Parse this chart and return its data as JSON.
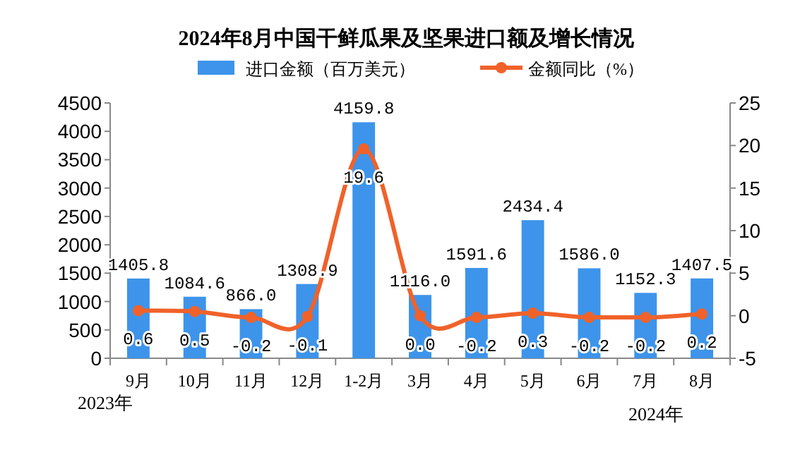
{
  "chart_data": {
    "type": "bar",
    "title": "2024年8月中国干鲜瓜果及坚果进口额及增长情况",
    "categories": [
      "9月",
      "10月",
      "11月",
      "12月",
      "1-2月",
      "3月",
      "4月",
      "5月",
      "6月",
      "7月",
      "8月"
    ],
    "series": [
      {
        "name": "进口金额（百万美元）",
        "color": "#3d94ea",
        "values": [
          1405.8,
          1084.6,
          866.0,
          1308.9,
          4159.8,
          1116.0,
          1591.6,
          2434.4,
          1586.0,
          1152.3,
          1407.5
        ],
        "value_labels": [
          "1405.8",
          "1084.6",
          "866.0",
          "1308.9",
          "4159.8",
          "1116.0",
          "1591.6",
          "2434.4",
          "1586.0",
          "1152.3",
          "1407.5"
        ]
      },
      {
        "name": "金额同比（%）",
        "type": "line",
        "axis": "y2",
        "color": "#f0622a",
        "marker": "circle",
        "values": [
          0.6,
          0.5,
          -0.2,
          -0.1,
          19.6,
          0.0,
          -0.2,
          0.3,
          -0.2,
          -0.2,
          0.2
        ],
        "value_labels": [
          "0.6",
          "0.5",
          "-0.2",
          "-0.1",
          "19.6",
          "0.0",
          "-0.2",
          "0.3",
          "-0.2",
          "-0.2",
          "0.2"
        ]
      }
    ],
    "ylim": [
      0,
      4500
    ],
    "yticks": [
      0,
      500,
      1000,
      1500,
      2000,
      2500,
      3000,
      3500,
      4000,
      4500
    ],
    "y2lim": [
      -5,
      25
    ],
    "y2ticks": [
      -5,
      0,
      5,
      10,
      15,
      20,
      25
    ],
    "legend": "top",
    "annotations": [
      "2023年",
      "2024年"
    ]
  }
}
